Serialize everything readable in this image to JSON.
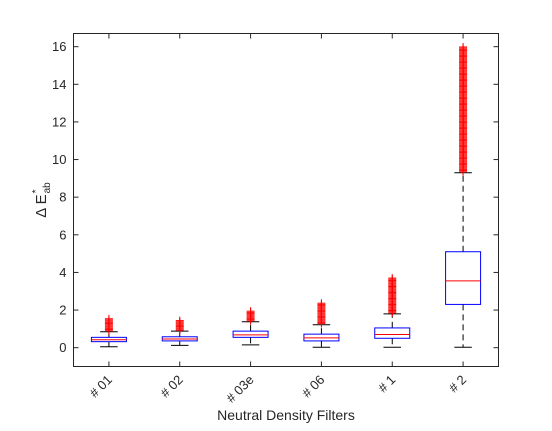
{
  "chart_data": {
    "type": "box",
    "title": "",
    "xlabel": "Neutral Density Filters",
    "ylabel": {
      "prefix": "Δ E",
      "superscript": "*",
      "subscript": "ab"
    },
    "ylim": [
      -1.0,
      16.7
    ],
    "yticks": [
      0,
      2,
      4,
      6,
      8,
      10,
      12,
      14,
      16
    ],
    "grid": false,
    "legend": "none",
    "colors": {
      "box": "#0000ff",
      "median": "#ff0000",
      "whisker": "#000000",
      "outlier": "#ff0000",
      "axis": "#262626"
    },
    "categories": [
      "# 01",
      "# 02",
      "# 03e",
      "# 06",
      "# 1",
      "# 2"
    ],
    "boxes": [
      {
        "category": "# 01",
        "whisker_low": 0.05,
        "q1": 0.32,
        "median": 0.42,
        "q3": 0.55,
        "whisker_high": 0.85,
        "outliers_from": 0.9,
        "outliers_to": 1.55
      },
      {
        "category": "# 02",
        "whisker_low": 0.12,
        "q1": 0.36,
        "median": 0.46,
        "q3": 0.58,
        "whisker_high": 0.88,
        "outliers_from": 0.93,
        "outliers_to": 1.45
      },
      {
        "category": "# 03e",
        "whisker_low": 0.15,
        "q1": 0.55,
        "median": 0.68,
        "q3": 0.88,
        "whisker_high": 1.38,
        "outliers_from": 1.43,
        "outliers_to": 1.95
      },
      {
        "category": "# 06",
        "whisker_low": 0.02,
        "q1": 0.36,
        "median": 0.52,
        "q3": 0.72,
        "whisker_high": 1.22,
        "outliers_from": 1.28,
        "outliers_to": 2.4
      },
      {
        "category": "# 1",
        "whisker_low": 0.02,
        "q1": 0.5,
        "median": 0.7,
        "q3": 1.05,
        "whisker_high": 1.8,
        "outliers_from": 1.85,
        "outliers_to": 3.75
      },
      {
        "category": "# 2",
        "whisker_low": 0.02,
        "q1": 2.3,
        "median": 3.55,
        "q3": 5.1,
        "whisker_high": 9.3,
        "outliers_from": 9.35,
        "outliers_to": 16.0
      }
    ]
  }
}
